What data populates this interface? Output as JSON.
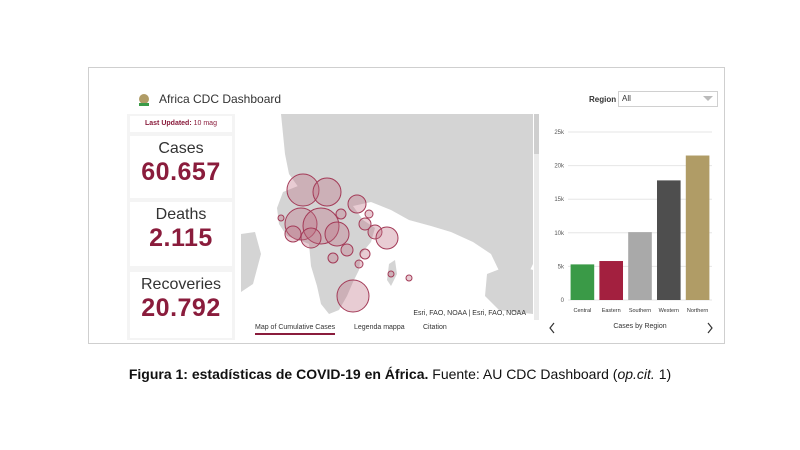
{
  "header": {
    "title": "Africa CDC Dashboard",
    "region_label": "Region",
    "region_value": "All"
  },
  "sidebar": {
    "updated_label": "Last Updated:",
    "updated_value": "10 mag",
    "stats": [
      {
        "label": "Cases",
        "value": "60.657"
      },
      {
        "label": "Deaths",
        "value": "2.115"
      },
      {
        "label": "Recoveries",
        "value": "20.792"
      }
    ]
  },
  "map": {
    "attribution": "Esri, FAO, NOAA | Esri, FAO, NOAA",
    "tabs": [
      "Map of Cumulative Cases",
      "Legenda mappa",
      "Citation"
    ],
    "active_tab": 0,
    "colors": {
      "land": "#d4d4d4",
      "water": "#ffffff",
      "bubble_fill": "rgba(190,110,130,0.35)",
      "bubble_stroke": "#a33a57"
    }
  },
  "chart_data": {
    "type": "bar",
    "title": "",
    "xlabel": "Cases by Region",
    "ylabel": "",
    "categories": [
      "Central",
      "Eastern",
      "Southern",
      "Western",
      "Northern"
    ],
    "values": [
      5300,
      5800,
      10100,
      17800,
      21500
    ],
    "colors": [
      "#3a9a47",
      "#a3203f",
      "#a9a9a9",
      "#4e4e4e",
      "#b09c66"
    ],
    "ylim": [
      0,
      25000
    ],
    "yticks": [
      0,
      5000,
      10000,
      15000,
      20000,
      25000
    ],
    "ytick_labels": [
      "0",
      "5k",
      "10k",
      "15k",
      "20k",
      "25k"
    ],
    "grid": true
  },
  "caption": {
    "bold": "Figura 1: estadísticas de COVID-19 en África.",
    "text_before_italic": " Fuente: AU CDC Dashboard (",
    "italic": "op.cit.",
    "text_after_italic": " 1)"
  }
}
